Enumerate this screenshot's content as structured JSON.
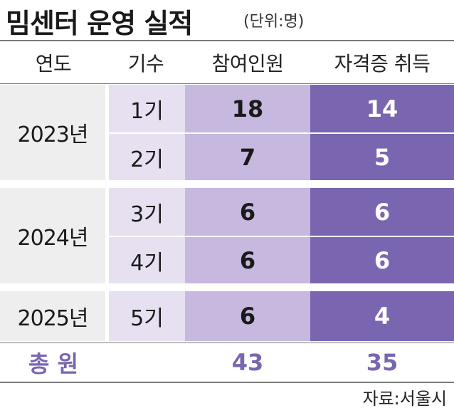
{
  "header": {
    "title": "밈센터 운영 실적",
    "unit": "(단위:명)"
  },
  "columns": [
    "연도",
    "기수",
    "참여인원",
    "자격증 취득"
  ],
  "groups": [
    {
      "year": "2023년",
      "rows": [
        {
          "cohort": "1기",
          "participants": "18",
          "certified": "14"
        },
        {
          "cohort": "2기",
          "participants": "7",
          "certified": "5"
        }
      ]
    },
    {
      "year": "2024년",
      "rows": [
        {
          "cohort": "3기",
          "participants": "6",
          "certified": "6"
        },
        {
          "cohort": "4기",
          "participants": "6",
          "certified": "6"
        }
      ]
    },
    {
      "year": "2025년",
      "rows": [
        {
          "cohort": "5기",
          "participants": "6",
          "certified": "4"
        }
      ]
    }
  ],
  "totals": {
    "label": "총 원",
    "participants": "43",
    "certified": "35"
  },
  "source": "자료:서울시",
  "colors": {
    "accent": "#7a66b0",
    "participants_fill": "#c6b8de",
    "cohort_fill": "#e6e0f0",
    "year_fill": "#eeeeee"
  },
  "chart_data": {
    "type": "table",
    "title": "밈센터 운영 실적",
    "unit": "(단위:명)",
    "columns": [
      "연도",
      "기수",
      "참여인원",
      "자격증 취득"
    ],
    "rows": [
      [
        "2023년",
        "1기",
        18,
        14
      ],
      [
        "2023년",
        "2기",
        7,
        5
      ],
      [
        "2024년",
        "3기",
        6,
        6
      ],
      [
        "2024년",
        "4기",
        6,
        6
      ],
      [
        "2025년",
        "5기",
        6,
        4
      ]
    ],
    "totals": [
      "총 원",
      "",
      43,
      35
    ]
  }
}
